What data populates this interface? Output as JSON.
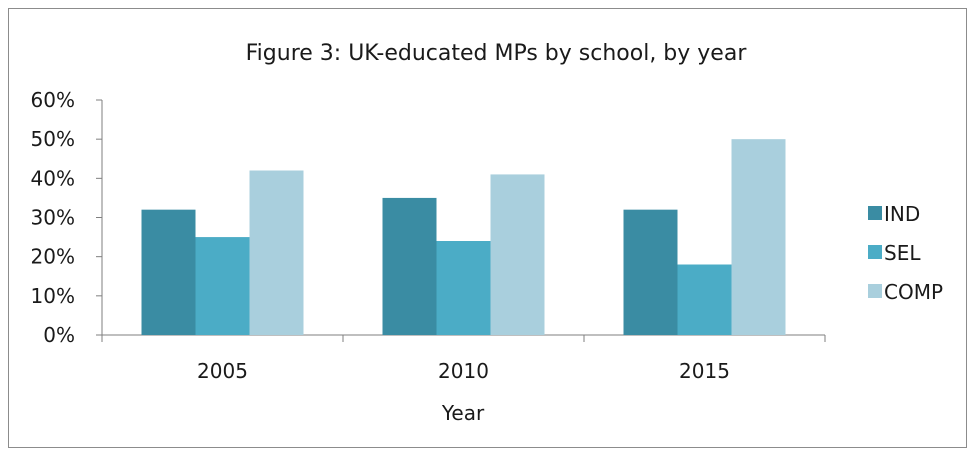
{
  "chart_data": {
    "type": "bar",
    "title": "Figure 3: UK-educated MPs by school, by year",
    "xlabel": "Year",
    "ylabel": "",
    "categories": [
      "2005",
      "2010",
      "2015"
    ],
    "series": [
      {
        "name": "IND",
        "color": "#3a8ca3",
        "values": [
          32,
          35,
          32
        ]
      },
      {
        "name": "SEL",
        "color": "#4bacc6",
        "values": [
          25,
          24,
          18
        ]
      },
      {
        "name": "COMP",
        "color": "#a9cfdd",
        "values": [
          42,
          41,
          50
        ]
      }
    ],
    "ylim": [
      0,
      60
    ],
    "yticks": [
      0,
      10,
      20,
      30,
      40,
      50,
      60
    ],
    "ytick_labels": [
      "0%",
      "10%",
      "20%",
      "30%",
      "40%",
      "50%",
      "60%"
    ],
    "grid": false,
    "legend_position": "right"
  }
}
